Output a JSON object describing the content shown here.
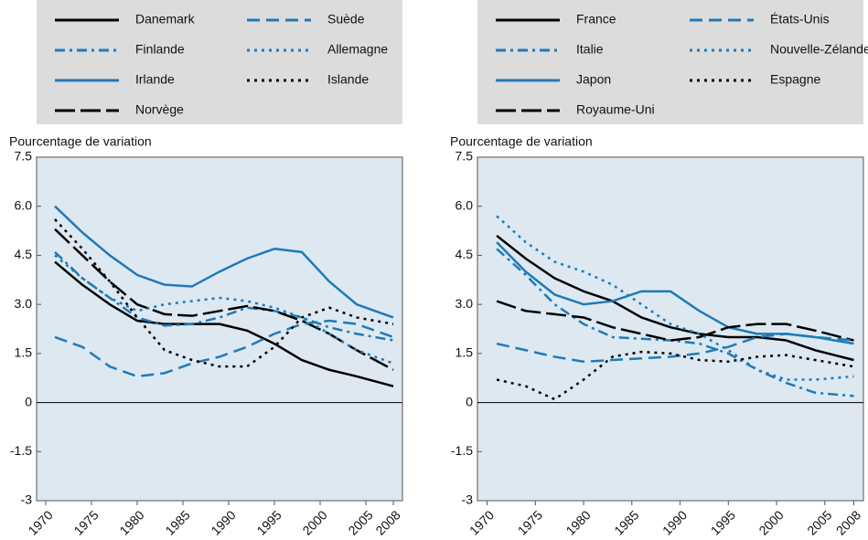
{
  "chart_data": [
    {
      "type": "line",
      "y_label": "Pourcentage de variation",
      "x": [
        1971,
        1974,
        1977,
        1980,
        1983,
        1986,
        1989,
        1992,
        1995,
        1998,
        2001,
        2004,
        2008
      ],
      "xlim": [
        1969,
        2009
      ],
      "xticks": [
        1970,
        1975,
        1980,
        1985,
        1990,
        1995,
        2000,
        2005,
        2008
      ],
      "ylim": [
        -3,
        7.5
      ],
      "yticks": [
        -3,
        -1.5,
        0,
        1.5,
        {
          "value": 3,
          "label": "3.0"
        },
        4.5,
        {
          "value": 6,
          "label": "6.0"
        },
        7.5
      ],
      "yticks_labels_fix": null,
      "series": [
        {
          "name": "Danemark",
          "color": "#000000",
          "style": "solid",
          "values": [
            4.3,
            3.6,
            3.0,
            2.5,
            2.4,
            2.4,
            2.4,
            2.2,
            1.8,
            1.3,
            1.0,
            0.8,
            0.5
          ]
        },
        {
          "name": "Finlande",
          "color": "#1f7ab8",
          "style": "dashdot",
          "values": [
            4.6,
            3.8,
            3.2,
            2.6,
            2.35,
            2.4,
            2.6,
            2.9,
            2.8,
            2.6,
            2.3,
            2.1,
            1.9
          ]
        },
        {
          "name": "Irlande",
          "color": "#1f7ab8",
          "style": "solid",
          "values": [
            6.0,
            5.2,
            4.5,
            3.9,
            3.6,
            3.55,
            4.0,
            4.4,
            4.7,
            4.6,
            3.7,
            3.0,
            2.6
          ]
        },
        {
          "name": "Norvège",
          "color": "#000000",
          "style": "longdash",
          "values": [
            5.3,
            4.5,
            3.7,
            3.0,
            2.7,
            2.65,
            2.8,
            2.95,
            2.8,
            2.5,
            2.1,
            1.6,
            1.0
          ]
        },
        {
          "name": "Suède",
          "color": "#1f7ab8",
          "style": "dashed",
          "values": [
            2.0,
            1.7,
            1.1,
            0.8,
            0.9,
            1.2,
            1.4,
            1.7,
            2.1,
            2.4,
            2.5,
            2.4,
            2.0
          ]
        },
        {
          "name": "Allemagne",
          "color": "#1f7ab8",
          "style": "dotted",
          "values": [
            4.5,
            3.8,
            3.2,
            2.8,
            3.0,
            3.1,
            3.2,
            3.1,
            2.9,
            2.6,
            2.1,
            1.6,
            1.2
          ]
        },
        {
          "name": "Islande",
          "color": "#000000",
          "style": "dotted",
          "values": [
            5.6,
            4.7,
            3.7,
            2.6,
            1.6,
            1.3,
            1.1,
            1.1,
            1.7,
            2.6,
            2.9,
            2.6,
            2.4
          ]
        }
      ]
    },
    {
      "type": "line",
      "y_label": "Pourcentage de variation",
      "x": [
        1971,
        1974,
        1977,
        1980,
        1983,
        1986,
        1989,
        1992,
        1995,
        1998,
        2001,
        2004,
        2008
      ],
      "xlim": [
        1969,
        2009
      ],
      "xticks": [
        1970,
        1975,
        1980,
        1985,
        1990,
        1995,
        2000,
        2005,
        2008
      ],
      "ylim": [
        -3,
        7.5
      ],
      "yticks": [
        -3,
        -1.5,
        0,
        1.5,
        {
          "value": 3,
          "label": "3.0"
        },
        4.5,
        {
          "value": 6,
          "label": "6.0"
        },
        7.5
      ],
      "yticks_labels_fix": null,
      "series": [
        {
          "name": "France",
          "color": "#000000",
          "style": "solid",
          "values": [
            5.1,
            4.4,
            3.8,
            3.4,
            3.1,
            2.6,
            2.3,
            2.1,
            2.0,
            2.0,
            1.9,
            1.6,
            1.3
          ]
        },
        {
          "name": "Italie",
          "color": "#1f7ab8",
          "style": "dashdot",
          "values": [
            4.7,
            3.9,
            3.0,
            2.4,
            2.0,
            1.95,
            1.9,
            1.8,
            1.5,
            1.0,
            0.6,
            0.3,
            0.2
          ]
        },
        {
          "name": "Japon",
          "color": "#1f7ab8",
          "style": "solid",
          "values": [
            4.9,
            4.0,
            3.3,
            3.0,
            3.1,
            3.4,
            3.4,
            2.8,
            2.3,
            2.1,
            2.1,
            2.0,
            1.8
          ]
        },
        {
          "name": "Royaume-Uni",
          "color": "#000000",
          "style": "longdash",
          "values": [
            3.1,
            2.8,
            2.7,
            2.6,
            2.3,
            2.1,
            1.9,
            2.0,
            2.3,
            2.4,
            2.4,
            2.2,
            1.9
          ]
        },
        {
          "name": "États-Unis",
          "color": "#1f7ab8",
          "style": "dashed",
          "values": [
            1.8,
            1.6,
            1.4,
            1.25,
            1.3,
            1.35,
            1.4,
            1.5,
            1.7,
            2.0,
            2.1,
            2.0,
            1.9
          ]
        },
        {
          "name": "Nouvelle-Zélande",
          "color": "#1f7ab8",
          "style": "dotted",
          "values": [
            5.7,
            4.9,
            4.3,
            4.0,
            3.6,
            3.0,
            2.4,
            2.1,
            1.6,
            1.0,
            0.7,
            0.7,
            0.8
          ]
        },
        {
          "name": "Espagne",
          "color": "#000000",
          "style": "dotted",
          "values": [
            0.7,
            0.5,
            0.1,
            0.7,
            1.4,
            1.55,
            1.5,
            1.3,
            1.25,
            1.4,
            1.45,
            1.3,
            1.1
          ]
        }
      ]
    }
  ]
}
